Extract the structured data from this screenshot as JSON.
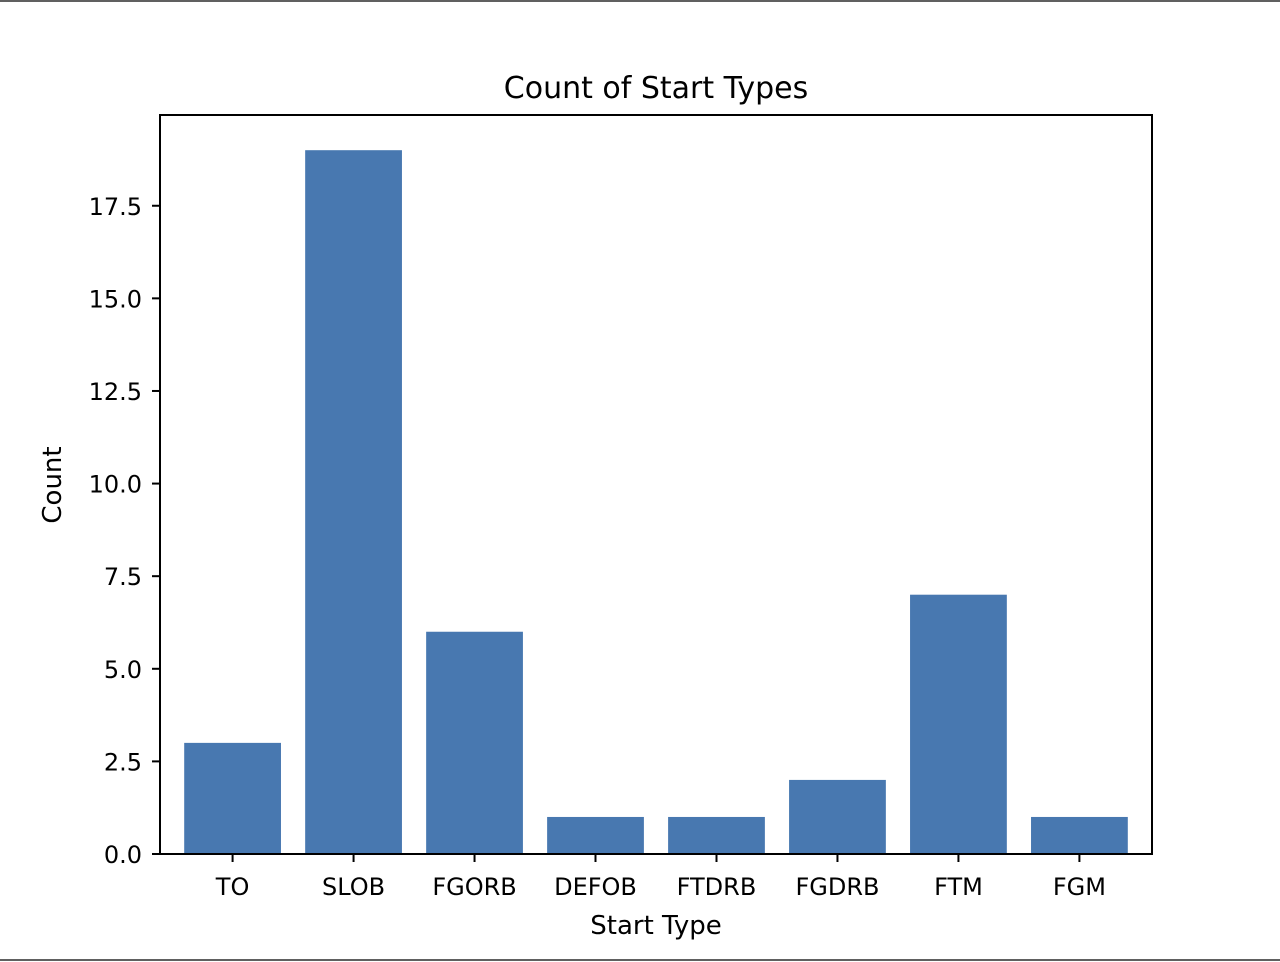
{
  "chart_data": {
    "type": "bar",
    "title": "Count of Start Types",
    "xlabel": "Start Type",
    "ylabel": "Count",
    "categories": [
      "TO",
      "SLOB",
      "FGORB",
      "DEFOB",
      "FTDRB",
      "FGDRB",
      "FTM",
      "FGM"
    ],
    "values": [
      3,
      19,
      6,
      1,
      1,
      2,
      7,
      1
    ],
    "ylim": [
      0,
      19.95
    ],
    "yticks": [
      0.0,
      2.5,
      5.0,
      7.5,
      10.0,
      12.5,
      15.0,
      17.5
    ],
    "ytick_labels": [
      "0.0",
      "2.5",
      "5.0",
      "7.5",
      "10.0",
      "12.5",
      "15.0",
      "17.5"
    ],
    "bar_color": "#4878b0",
    "grid": false,
    "legend": "none"
  }
}
